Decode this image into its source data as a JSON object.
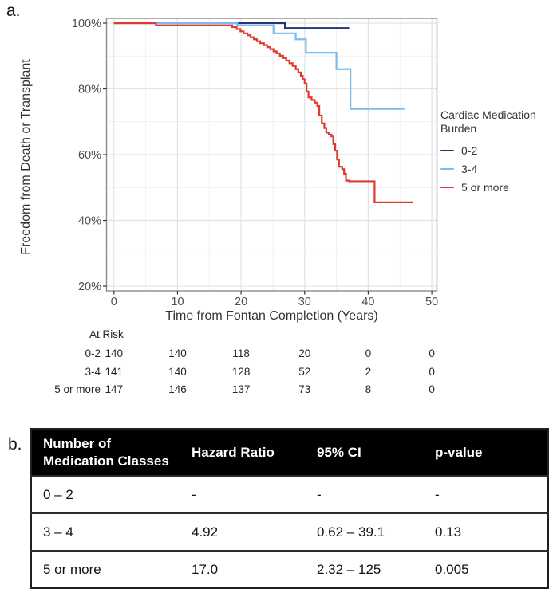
{
  "figure": {
    "panel_a_label": "a.",
    "panel_b_label": "b."
  },
  "chart_data": {
    "type": "line",
    "subtype": "kaplan-meier-step-curves",
    "title": "",
    "xlabel": "Time from Fontan Completion (Years)",
    "ylabel": "Freedom from Death or Transplant",
    "xlim": [
      0,
      50
    ],
    "ylim": [
      20,
      100
    ],
    "x_ticks": [
      0,
      10,
      20,
      30,
      40,
      50
    ],
    "y_ticks": [
      20,
      40,
      60,
      80,
      100
    ],
    "y_tick_labels": [
      "20%",
      "40%",
      "60%",
      "80%",
      "100%"
    ],
    "grid": "major and minor, light gray, panel border on",
    "legend": {
      "title": "Cardiac Medication Burden",
      "position": "right"
    },
    "series": [
      {
        "name": "0-2",
        "color": "#283275",
        "end": 37,
        "steps": [
          [
            0,
            100
          ],
          [
            26.9,
            98.5
          ]
        ]
      },
      {
        "name": "3-4",
        "color": "#7bbcea",
        "end": 45.7,
        "steps": [
          [
            0,
            100
          ],
          [
            19.4,
            99.3
          ],
          [
            25.1,
            96.9
          ],
          [
            28.6,
            95.1
          ],
          [
            30.2,
            91
          ],
          [
            35,
            86
          ],
          [
            37.2,
            73.9
          ]
        ]
      },
      {
        "name": "5 or more",
        "color": "#e0392d",
        "end": 47,
        "steps": [
          [
            0,
            100
          ],
          [
            6.6,
            99.3
          ],
          [
            18.6,
            98.8
          ],
          [
            19.3,
            98.2
          ],
          [
            19.9,
            97.5
          ],
          [
            20.4,
            96.9
          ],
          [
            21,
            96.3
          ],
          [
            21.5,
            95.7
          ],
          [
            22,
            95.1
          ],
          [
            22.5,
            94.5
          ],
          [
            23,
            93.9
          ],
          [
            23.6,
            93.3
          ],
          [
            24.1,
            92.7
          ],
          [
            24.6,
            92.1
          ],
          [
            25.1,
            91.4
          ],
          [
            25.6,
            90.8
          ],
          [
            26.1,
            90.1
          ],
          [
            26.6,
            89.4
          ],
          [
            27.1,
            88.6
          ],
          [
            27.6,
            87.8
          ],
          [
            28.1,
            87
          ],
          [
            28.6,
            86
          ],
          [
            29,
            85
          ],
          [
            29.4,
            84
          ],
          [
            29.7,
            82.9
          ],
          [
            30,
            81.6
          ],
          [
            30.3,
            79.2
          ],
          [
            30.6,
            77.4
          ],
          [
            31.1,
            76.6
          ],
          [
            31.6,
            75.8
          ],
          [
            32,
            74.8
          ],
          [
            32.3,
            71.9
          ],
          [
            32.7,
            69.5
          ],
          [
            33.1,
            68.1
          ],
          [
            33.4,
            66.7
          ],
          [
            33.8,
            66.1
          ],
          [
            34.2,
            65.5
          ],
          [
            34.5,
            63.2
          ],
          [
            34.8,
            61.2
          ],
          [
            35.1,
            58.5
          ],
          [
            35.4,
            56.3
          ],
          [
            35.9,
            55.6
          ],
          [
            36.2,
            54.2
          ],
          [
            36.5,
            52.1
          ],
          [
            37,
            51.9
          ],
          [
            41,
            45.5
          ]
        ]
      }
    ],
    "at_risk": {
      "label": "At Risk",
      "times": [
        0,
        10,
        20,
        30,
        40,
        50
      ],
      "rows": [
        {
          "name": "0-2",
          "counts": [
            140,
            140,
            118,
            20,
            0,
            0
          ]
        },
        {
          "name": "3-4",
          "counts": [
            141,
            140,
            128,
            52,
            2,
            0
          ]
        },
        {
          "name": "5 or more",
          "counts": [
            147,
            146,
            137,
            73,
            8,
            0
          ]
        }
      ]
    }
  },
  "hazard_table": {
    "headers": [
      "Number of Medication Classes",
      "Hazard Ratio",
      "95% CI",
      "p-value"
    ],
    "rows": [
      [
        "0 – 2",
        "-",
        "-",
        "-"
      ],
      [
        "3 – 4",
        "4.92",
        "0.62 – 39.1",
        "0.13"
      ],
      [
        "5 or more",
        "17.0",
        "2.32 – 125",
        "0.005"
      ]
    ]
  }
}
